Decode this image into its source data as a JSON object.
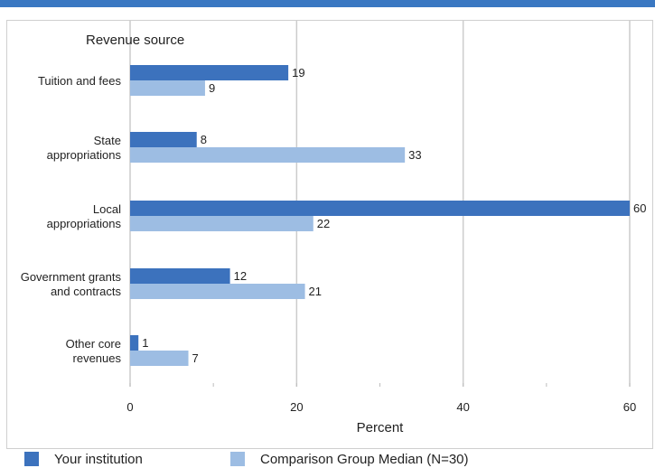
{
  "colors": {
    "top_bar": "#3a78c2",
    "your_institution": "#3c72bd",
    "comparison_median": "#9dbde3",
    "gridline": "#cccccc"
  },
  "chart_data": {
    "type": "bar",
    "orientation": "horizontal",
    "categories": [
      [
        "Tuition and fees"
      ],
      [
        "State",
        "appropriations"
      ],
      [
        "Local",
        "appropriations"
      ],
      [
        "Government grants",
        "and contracts"
      ],
      [
        "Other core",
        "revenues"
      ]
    ],
    "series": [
      {
        "name": "Your institution",
        "values": [
          19,
          8,
          60,
          12,
          1
        ],
        "color": "#3c72bd"
      },
      {
        "name": "Comparison Group Median (N=30)",
        "values": [
          9,
          33,
          22,
          21,
          7
        ],
        "color": "#9dbde3"
      }
    ],
    "ylabel": "Revenue source",
    "xlabel": "Percent",
    "xlim": [
      0,
      60
    ],
    "xticks": [
      0,
      20,
      40,
      60
    ],
    "grid": true,
    "data_labels": true,
    "legend_position": "bottom"
  }
}
